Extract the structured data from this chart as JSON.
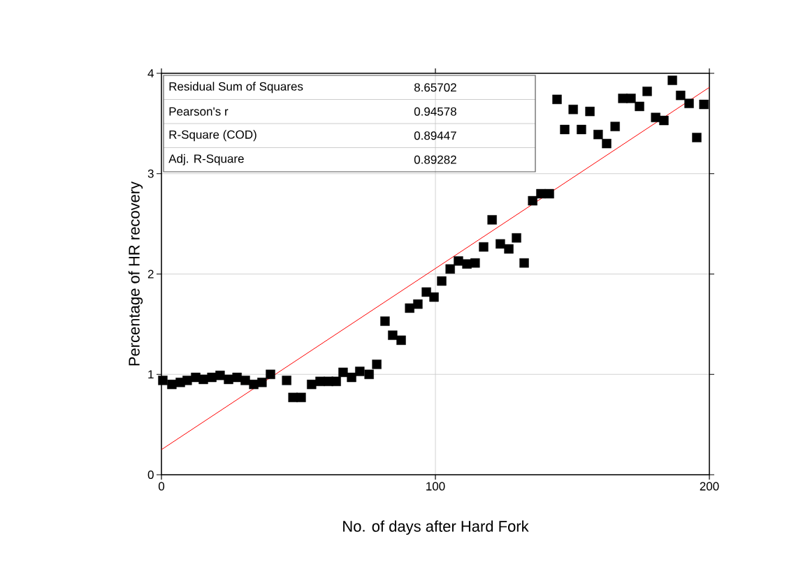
{
  "chart_data": {
    "type": "scatter",
    "xlabel": "No. of days after Hard Fork",
    "ylabel": "Percentage of HR recovery",
    "xlim": [
      0,
      200
    ],
    "ylim": [
      0,
      4
    ],
    "xticks": [
      0,
      100,
      200
    ],
    "yticks": [
      0,
      1,
      2,
      3,
      4
    ],
    "grid": true,
    "series": [
      {
        "marker": "square",
        "color": "#000000",
        "x": [
          0.5,
          3.8,
          6.9,
          9.4,
          12.5,
          15.3,
          18.4,
          21.4,
          24.5,
          27.6,
          30.6,
          33.7,
          36.7,
          39.8,
          45.7,
          48,
          51,
          54.8,
          57.9,
          61,
          63.8,
          66.3,
          69.4,
          72.4,
          75.8,
          78.6,
          81.6,
          84.4,
          87.5,
          90.6,
          93.6,
          96.7,
          99.5,
          102.3,
          105.4,
          108.4,
          111.5,
          114.5,
          117.6,
          120.7,
          123.7,
          126.8,
          129.6,
          132.4,
          135.5,
          138.5,
          141.6,
          144.4,
          147.2,
          150.3,
          153.3,
          156.4,
          159.4,
          162.5,
          165.6,
          168.4,
          171.4,
          174.5,
          177.3,
          180.4,
          183.4,
          186.5,
          189.5,
          192.6,
          195.4,
          198
        ],
        "values": [
          0.94,
          0.9,
          0.92,
          0.94,
          0.97,
          0.95,
          0.97,
          0.99,
          0.95,
          0.97,
          0.94,
          0.9,
          0.92,
          1.0,
          0.94,
          0.77,
          0.77,
          0.9,
          0.93,
          0.93,
          0.93,
          1.02,
          0.97,
          1.03,
          1.0,
          1.1,
          1.53,
          1.39,
          1.34,
          1.66,
          1.7,
          1.82,
          1.77,
          1.93,
          2.05,
          2.13,
          2.1,
          2.11,
          2.27,
          2.54,
          2.3,
          2.25,
          2.36,
          2.11,
          2.73,
          2.8,
          2.8,
          3.74,
          3.44,
          3.64,
          3.44,
          3.62,
          3.39,
          3.3,
          3.47,
          3.75,
          3.75,
          3.67,
          3.82,
          3.56,
          3.53,
          3.93,
          3.78,
          3.7,
          3.36,
          3.69
        ]
      },
      {
        "type": "line",
        "color": "#ff0000",
        "x": [
          0,
          200
        ],
        "values": [
          0.25,
          3.86
        ]
      }
    ],
    "annotations": [
      "Residual Sum of Squares",
      "8.65702",
      "Pearson's r",
      "0.94578",
      "R-Square (COD)",
      "0.89447",
      "Adj. R-Square",
      "0.89282"
    ]
  }
}
